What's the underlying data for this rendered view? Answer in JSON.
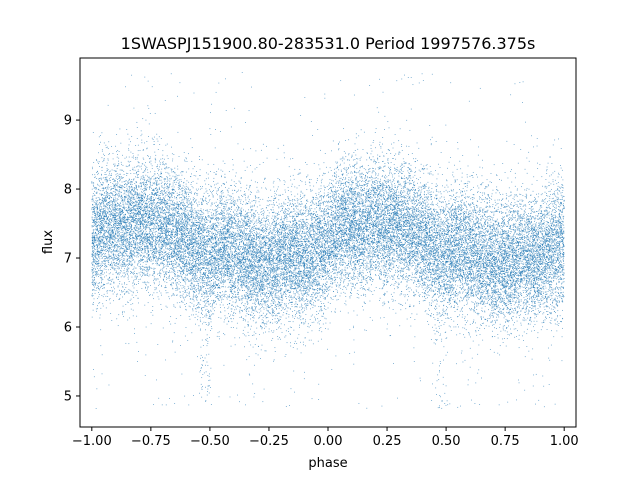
{
  "chart_data": {
    "type": "scatter",
    "title": "1SWASPJ151900.80-283531.0 Period 1997576.375s",
    "xlabel": "phase",
    "ylabel": "flux",
    "xlim": [
      -1.05,
      1.05
    ],
    "ylim": [
      4.55,
      9.9
    ],
    "xticks": [
      -1.0,
      -0.75,
      -0.5,
      -0.25,
      0.0,
      0.25,
      0.5,
      0.75,
      1.0
    ],
    "xtick_labels": [
      "−1.00",
      "−0.75",
      "−0.50",
      "−0.25",
      "0.00",
      "0.25",
      "0.50",
      "0.75",
      "1.00"
    ],
    "yticks": [
      5,
      6,
      7,
      8,
      9
    ],
    "ytick_labels": [
      "5",
      "6",
      "7",
      "8",
      "9"
    ],
    "grid": false,
    "point_color": "#1f77b4",
    "profile": {
      "phase": [
        0.0,
        0.05,
        0.1,
        0.15,
        0.2,
        0.25,
        0.3,
        0.35,
        0.4,
        0.45,
        0.5,
        0.55,
        0.6,
        0.65,
        0.7,
        0.75,
        0.8,
        0.85,
        0.9,
        0.95,
        1.0
      ],
      "median_flux": [
        7.2,
        7.45,
        7.5,
        7.4,
        7.55,
        7.45,
        7.5,
        7.35,
        7.3,
        7.1,
        7.05,
        7.15,
        7.1,
        7.0,
        6.95,
        6.9,
        7.0,
        7.05,
        7.0,
        7.1,
        7.2
      ],
      "scatter": 0.45
    },
    "dips": [
      {
        "phase": 0.48,
        "min_flux": 4.8
      },
      {
        "phase": -0.52,
        "min_flux": 4.8
      }
    ],
    "outlier_range": [
      4.8,
      9.7
    ],
    "approx_points": 30000
  }
}
